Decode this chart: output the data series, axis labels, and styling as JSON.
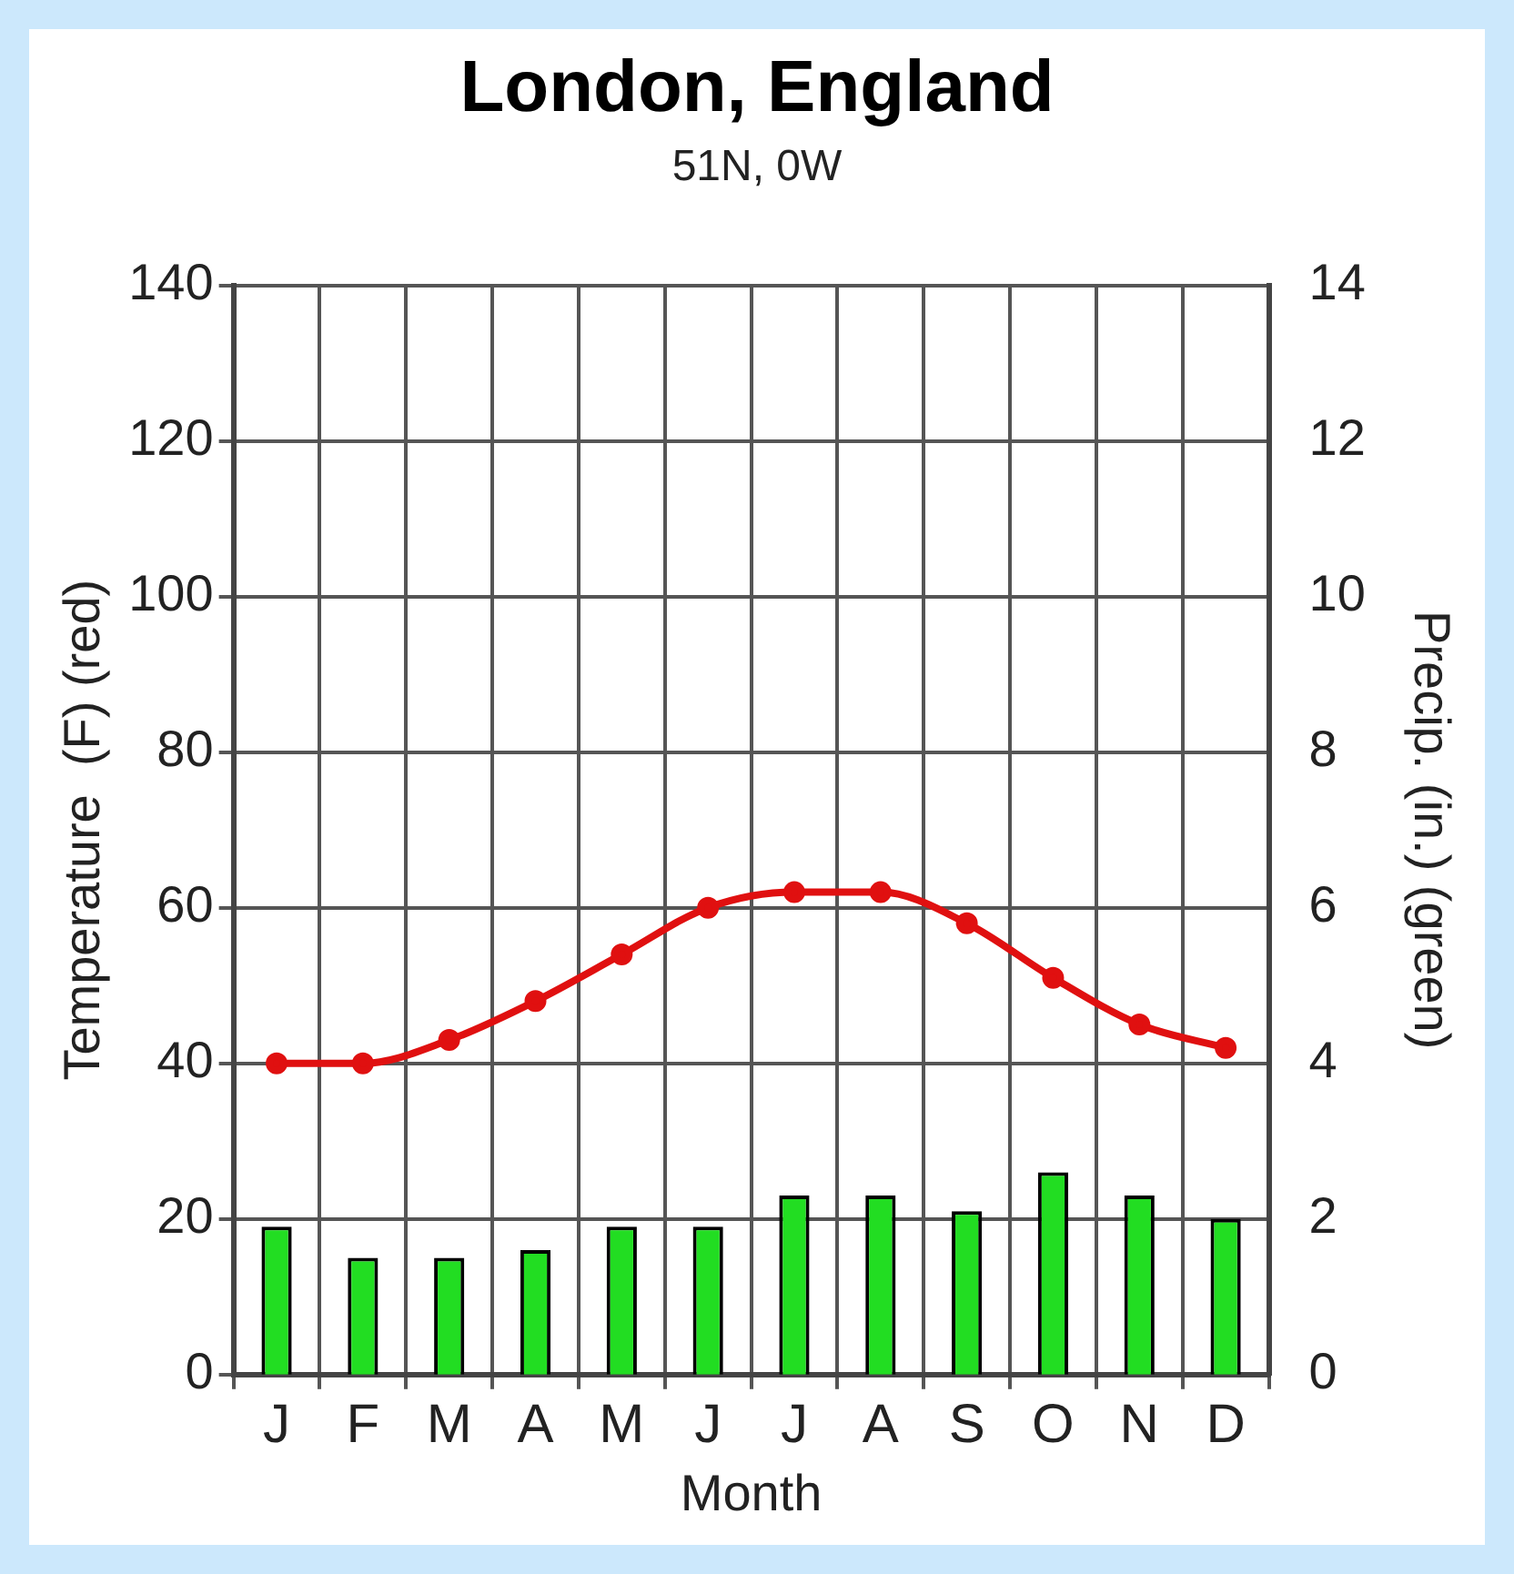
{
  "chart_data": {
    "type": "bar",
    "title": "London, England",
    "subtitle": "51N, 0W",
    "xlabel": "Month",
    "ylabel": "Temperature  (F) (red)",
    "y2label": "Precip. (in.) (green)",
    "categories": [
      "J",
      "F",
      "M",
      "A",
      "M",
      "J",
      "J",
      "A",
      "S",
      "O",
      "N",
      "D"
    ],
    "series": [
      {
        "type": "line",
        "color": "#e01010",
        "axis": "y",
        "values": [
          40,
          40,
          43,
          48,
          54,
          60,
          62,
          62,
          58,
          51,
          45,
          42
        ]
      },
      {
        "color": "#22dd22",
        "axis": "y2",
        "values": [
          1.9,
          1.5,
          1.5,
          1.6,
          1.9,
          1.9,
          2.3,
          2.3,
          2.1,
          2.6,
          2.3,
          2.0
        ]
      }
    ],
    "ylim": [
      0,
      140
    ],
    "yticks": [
      0,
      20,
      40,
      60,
      80,
      100,
      120,
      140
    ],
    "y2lim": [
      0,
      14
    ],
    "y2ticks": [
      0,
      2,
      4,
      6,
      8,
      10,
      12,
      14
    ],
    "grid": true,
    "legend": false,
    "marker": "circle",
    "line_style": "solid"
  }
}
